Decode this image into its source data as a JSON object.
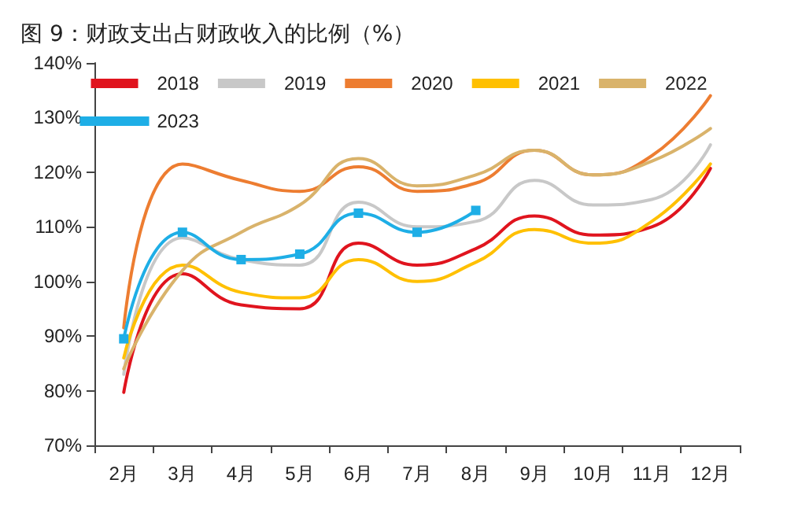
{
  "chart_data": {
    "type": "line",
    "title": "图 9：财政支出占财政收入的比例（%）",
    "categories": [
      "2月",
      "3月",
      "4月",
      "5月",
      "6月",
      "7月",
      "8月",
      "9月",
      "10月",
      "11月",
      "12月"
    ],
    "series": [
      {
        "name": "2018",
        "color": "#e0141e",
        "values": [
          79.7,
          101.4,
          95.7,
          95,
          107,
          103,
          106,
          112,
          108.5,
          110,
          120.7
        ]
      },
      {
        "name": "2019",
        "color": "#c8c8c8",
        "values": [
          83,
          108,
          104,
          103,
          114.5,
          110,
          111,
          118.5,
          114,
          115,
          125
        ]
      },
      {
        "name": "2020",
        "color": "#ed7d31",
        "values": [
          91.5,
          121.5,
          118.5,
          116.5,
          121,
          116.5,
          118,
          124,
          119.5,
          123,
          134
        ]
      },
      {
        "name": "2021",
        "color": "#ffc000",
        "values": [
          86,
          103,
          98,
          97,
          104,
          100,
          103.5,
          109.5,
          107,
          111,
          121.5
        ]
      },
      {
        "name": "2022",
        "color": "#d9b36b",
        "values": [
          84,
          102,
          109,
          114,
          122.5,
          117.5,
          119.5,
          124,
          119.5,
          122,
          128
        ]
      },
      {
        "name": "2023",
        "color": "#1eaee6",
        "marker": "square",
        "values": [
          89.5,
          109,
          104,
          105,
          112.5,
          109,
          113,
          null,
          null,
          null,
          null
        ]
      }
    ],
    "ylim": [
      70,
      140
    ],
    "yticks": [
      {
        "value": 70,
        "label": "70%"
      },
      {
        "value": 80,
        "label": "80%"
      },
      {
        "value": 90,
        "label": "90%"
      },
      {
        "value": 100,
        "label": "100%"
      },
      {
        "value": 110,
        "label": "110%"
      },
      {
        "value": 120,
        "label": "120%"
      },
      {
        "value": 130,
        "label": "130%"
      },
      {
        "value": 140,
        "label": "140%"
      }
    ],
    "grid": false,
    "legend": "top",
    "marker": "none",
    "line_style": "solid"
  }
}
